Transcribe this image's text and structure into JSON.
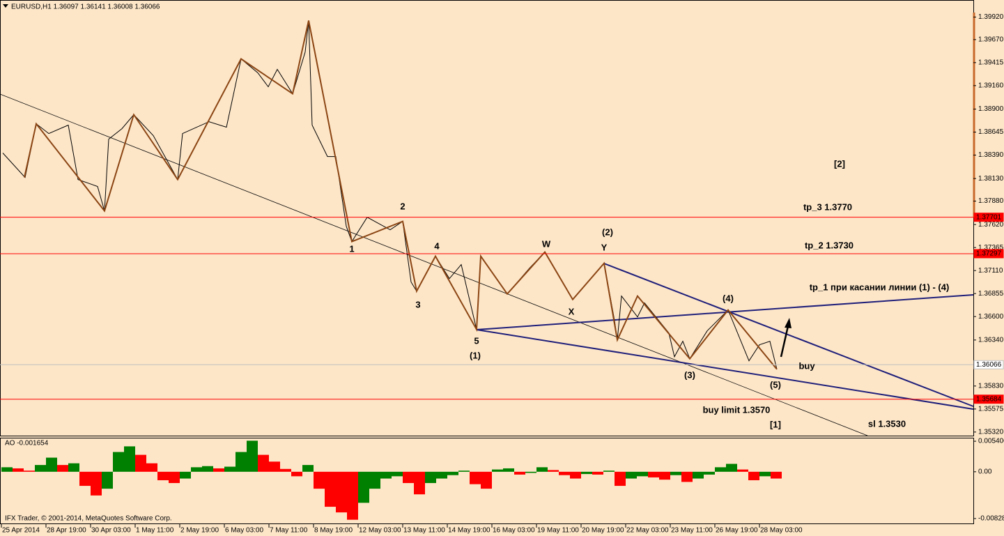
{
  "chart_data": [
    {
      "type": "line",
      "title": "EURUSD,H1 1.36097 1.36141 1.36008 1.36066",
      "xlim": [
        0,
        698.5
      ],
      "xticks": [
        {
          "value": 1,
          "label": "25 Apr 2014"
        },
        {
          "value": 33,
          "label": "28 Apr 19:00"
        },
        {
          "value": 65,
          "label": "30 Apr 03:00"
        },
        {
          "value": 97,
          "label": "1 May 11:00"
        },
        {
          "value": 129,
          "label": "2 May 19:00"
        },
        {
          "value": 161,
          "label": "6 May 03:00"
        },
        {
          "value": 193,
          "label": "7 May 11:00"
        },
        {
          "value": 225,
          "label": "8 May 19:00"
        },
        {
          "value": 257,
          "label": "12 May 03:00"
        },
        {
          "value": 289,
          "label": "13 May 11:00"
        },
        {
          "value": 321,
          "label": "14 May 19:00"
        },
        {
          "value": 353,
          "label": "16 May 03:00"
        },
        {
          "value": 385,
          "label": "19 May 11:00"
        },
        {
          "value": 417,
          "label": "20 May 19:00"
        },
        {
          "value": 449,
          "label": "22 May 03:00"
        },
        {
          "value": 481,
          "label": "23 May 11:00"
        },
        {
          "value": 513,
          "label": "26 May 19:00"
        },
        {
          "value": 545,
          "label": "28 May 03:00"
        }
      ],
      "ylim": [
        1.3528,
        1.3997
      ],
      "yticks": [
        {
          "value": 1.3992,
          "label": "1.39920"
        },
        {
          "value": 1.3967,
          "label": "1.39670"
        },
        1.39415,
        {
          "value": 1.3916,
          "label": "1.39160"
        },
        {
          "value": 1.389,
          "label": "1.38900"
        },
        1.38645,
        {
          "value": 1.3839,
          "label": "1.38390"
        },
        {
          "value": 1.3813,
          "label": "1.38130"
        },
        {
          "value": 1.3788,
          "label": "1.37880"
        },
        {
          "value": 1.3762,
          "label": "1.37620"
        },
        1.37365,
        {
          "value": 1.3711,
          "label": "1.37110"
        },
        1.36855,
        {
          "value": 1.366,
          "label": "1.36600"
        },
        {
          "value": 1.3634,
          "label": "1.36340"
        },
        {
          "value": 1.3583,
          "label": "1.35830"
        },
        1.35575,
        {
          "value": 1.3532,
          "label": "1.35320"
        }
      ],
      "series": [
        {
          "color": "#000000",
          "x": [
            2,
            18,
            26,
            35,
            49,
            56,
            70,
            75,
            78,
            87.5,
            96,
            110,
            127.5,
            131,
            150,
            162.5,
            173,
            185,
            192.5,
            199,
            210,
            219,
            221.5,
            224,
            235,
            241,
            248.5,
            252.5,
            263.5,
            280,
            289,
            295,
            299,
            312.5,
            322.5,
            331,
            342,
            345,
            364,
            380,
            391,
            400,
            411,
            433.5,
            441,
            443,
            446,
            457.5,
            462.5,
            480,
            484,
            490,
            495,
            507.5,
            522.5,
            537.5,
            545,
            552.5,
            557.5
          ],
          "values": [
            1.38413,
            1.38142,
            1.38737,
            1.38629,
            1.38722,
            1.38119,
            1.38042,
            1.37771,
            1.38567,
            1.38683,
            1.38838,
            1.38606,
            1.38119,
            1.38629,
            1.3876,
            1.38699,
            1.39456,
            1.39302,
            1.39147,
            1.3934,
            1.3907,
            1.39533,
            1.39881,
            1.38722,
            1.38374,
            1.38374,
            1.37601,
            1.37431,
            1.37701,
            1.37562,
            1.37655,
            1.36983,
            1.36882,
            1.37269,
            1.37021,
            1.37176,
            1.36457,
            1.37269,
            1.36851,
            1.37137,
            1.37315,
            1.37083,
            1.36789,
            1.37191,
            1.36557,
            1.36341,
            1.36828,
            1.36596,
            1.36751,
            1.36418,
            1.36155,
            1.36326,
            1.36132,
            1.36441,
            1.36673,
            1.36109,
            1.36287,
            1.36326,
            1.36016
          ]
        },
        {
          "color": "#8b4513",
          "x": [
            17.5,
            26,
            75,
            96,
            127.5,
            173,
            210,
            221.5,
            252.5,
            289,
            299,
            312.5,
            342,
            345,
            364,
            391,
            411,
            433.5,
            443,
            457.5,
            495,
            522.5,
            557.5
          ],
          "values": [
            1.38142,
            1.38737,
            1.37771,
            1.38838,
            1.38119,
            1.39456,
            1.3907,
            1.39881,
            1.37431,
            1.37655,
            1.36882,
            1.37269,
            1.36457,
            1.37269,
            1.36851,
            1.37315,
            1.36789,
            1.37191,
            1.36341,
            1.36828,
            1.36132,
            1.36673,
            1.36016
          ]
        }
      ],
      "levels": [
        {
          "value": 1.37701,
          "color": "#ff0000"
        },
        {
          "value": 1.37297,
          "color": "#ff0000"
        },
        {
          "value": 1.35684,
          "color": "#ff0000"
        },
        {
          "value": 1.36066,
          "color": "#c0c0c0"
        }
      ],
      "annotations": [
        "1",
        "2",
        "3",
        "4",
        "5",
        "(1)",
        "W",
        "X",
        "Y",
        "(2)",
        "(3)",
        "(4)",
        "(5)",
        "[1]",
        "[2]",
        "tp_3 1.3770",
        "tp_2 1.3730",
        "tp_1 при касании линии (1) - (4)",
        "buy",
        "buy limit 1.3570",
        "sl 1.3530"
      ]
    },
    {
      "type": "bar",
      "title": "AO -0.001654",
      "up_color": "#008000",
      "down_color": "#ff0000",
      "ylim": [
        -0.00928,
        0.00603
      ],
      "yticks": [
        0.005406,
        {
          "value": 0,
          "label": "0.00"
        },
        -0.008289
      ],
      "values": [
        0.0008,
        0.0006,
        0.0002,
        0.0012,
        0.0025,
        0.0012,
        0.0015,
        -0.0025,
        -0.0042,
        -0.003,
        0.0035,
        0.0045,
        0.003,
        0.0015,
        -0.0015,
        -0.002,
        -0.0012,
        0.0008,
        0.001,
        0.0006,
        0.0009,
        0.0035,
        0.0055,
        0.003,
        0.0018,
        0.0005,
        -0.0008,
        0.0012,
        -0.003,
        -0.0062,
        -0.0072,
        -0.0085,
        -0.0055,
        -0.003,
        -0.0012,
        -0.0008,
        -0.002,
        -0.004,
        -0.002,
        -0.0012,
        -0.0006,
        0.0002,
        -0.0022,
        -0.003,
        0.0004,
        0.0006,
        -0.0005,
        -0.0002,
        0.0008,
        0.0003,
        -0.0006,
        -0.0012,
        -0.0004,
        -0.0005,
        0.0002,
        -0.0025,
        -0.0012,
        -0.0008,
        -0.001,
        -0.0014,
        -0.0006,
        -0.0018,
        -0.0012,
        -0.0005,
        0.0008,
        0.0014,
        0.0004,
        -0.0015,
        -0.0008,
        -0.0012
      ]
    }
  ],
  "footer": "IFX Trader, © 2001-2014, MetaQuotes Software Corp."
}
